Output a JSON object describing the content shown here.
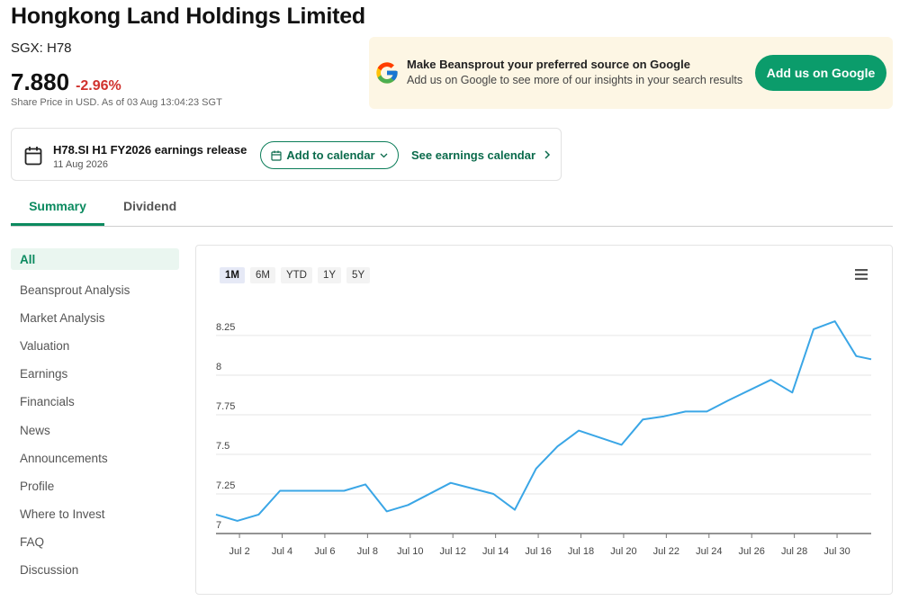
{
  "header": {
    "company_name": "Hongkong Land Holdings Limited",
    "ticker": "SGX: H78",
    "price": "7.880",
    "change": "-2.96%",
    "price_note": "Share Price in USD. As of 03 Aug 13:04:23 SGT"
  },
  "google_banner": {
    "title": "Make Beansprout your preferred source on Google",
    "subtitle": "Add us on Google to see more of our insights in your search results",
    "button_label": "Add us on Google"
  },
  "earnings": {
    "title": "H78.SI H1 FY2026 earnings release",
    "date": "11 Aug 2026",
    "add_calendar_label": "Add to calendar",
    "see_calendar_label": "See earnings calendar"
  },
  "tabs": [
    {
      "label": "Summary",
      "active": true
    },
    {
      "label": "Dividend",
      "active": false
    }
  ],
  "sidebar": {
    "items": [
      {
        "label": "All",
        "active": true
      },
      {
        "label": "Beansprout Analysis"
      },
      {
        "label": "Market Analysis"
      },
      {
        "label": "Valuation"
      },
      {
        "label": "Earnings"
      },
      {
        "label": "Financials"
      },
      {
        "label": "News"
      },
      {
        "label": "Announcements"
      },
      {
        "label": "Profile"
      },
      {
        "label": "Where to Invest"
      },
      {
        "label": "FAQ"
      },
      {
        "label": "Discussion"
      }
    ]
  },
  "chart_controls": {
    "ranges": [
      "1M",
      "6M",
      "YTD",
      "1Y",
      "5Y"
    ],
    "selected_range": "1M"
  },
  "colors": {
    "accent_green": "#0b8a5f",
    "negative_red": "#d0312d",
    "line_blue": "#3aa6e6"
  },
  "chart_data": {
    "type": "line",
    "x_tick_labels": [
      "Jul 2",
      "Jul 4",
      "Jul 6",
      "Jul 8",
      "Jul 10",
      "Jul 12",
      "Jul 14",
      "Jul 16",
      "Jul 18",
      "Jul 20",
      "Jul 22",
      "Jul 24",
      "Jul 26",
      "Jul 28",
      "Jul 30"
    ],
    "x_tick_days": [
      2,
      4,
      6,
      8,
      10,
      12,
      14,
      16,
      18,
      20,
      22,
      24,
      26,
      28,
      30
    ],
    "y_tick_labels": [
      "7",
      "7.25",
      "7.5",
      "7.75",
      "8",
      "8.25"
    ],
    "y_ticks": [
      7,
      7.25,
      7.5,
      7.75,
      8,
      8.25
    ],
    "ylim": [
      7,
      8.42
    ],
    "xlim": [
      0.9,
      31.6
    ],
    "grid": true,
    "legend": "none",
    "series": [
      {
        "x": [
          0.9,
          1.9,
          2.9,
          3.9,
          5.9,
          6.9,
          7.9,
          8.9,
          9.9,
          11.9,
          13.9,
          14.9,
          15.9,
          16.9,
          17.9,
          19.9,
          20.9,
          21.9,
          22.9,
          23.9,
          24.9,
          26.9,
          27.9,
          28.9,
          29.9,
          30.9,
          31.6
        ],
        "y": [
          7.12,
          7.08,
          7.12,
          7.27,
          7.27,
          7.27,
          7.31,
          7.14,
          7.18,
          7.32,
          7.25,
          7.15,
          7.41,
          7.55,
          7.65,
          7.56,
          7.72,
          7.74,
          7.77,
          7.77,
          7.84,
          7.97,
          7.89,
          8.29,
          8.34,
          8.12,
          8.1
        ]
      }
    ]
  }
}
